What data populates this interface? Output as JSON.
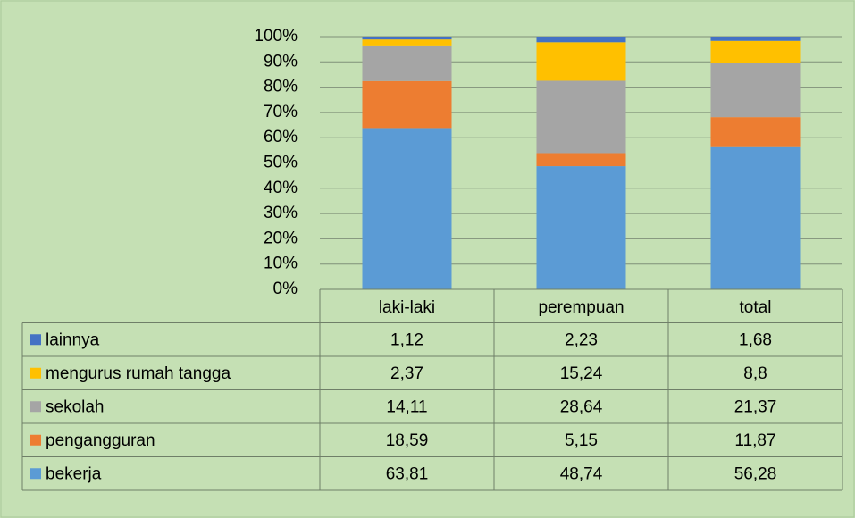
{
  "chart_data": {
    "type": "stacked_bar",
    "categories": [
      "laki-laki",
      "perempuan",
      "total"
    ],
    "series": [
      {
        "name": "lainnya",
        "color": "#4472c4",
        "values": [
          1.12,
          2.23,
          1.68
        ],
        "value_labels": [
          "1,12",
          "2,23",
          "1,68"
        ]
      },
      {
        "name": "mengurus rumah tangga",
        "color": "#ffc000",
        "values": [
          2.37,
          15.24,
          8.8
        ],
        "value_labels": [
          "2,37",
          "15,24",
          "8,8"
        ]
      },
      {
        "name": "sekolah",
        "color": "#a5a5a5",
        "values": [
          14.11,
          28.64,
          21.37
        ],
        "value_labels": [
          "14,11",
          "28,64",
          "21,37"
        ]
      },
      {
        "name": "pengangguran",
        "color": "#ed7d31",
        "values": [
          18.59,
          5.15,
          11.87
        ],
        "value_labels": [
          "18,59",
          "5,15",
          "11,87"
        ]
      },
      {
        "name": "bekerja",
        "color": "#5b9bd5",
        "values": [
          63.81,
          48.74,
          56.28
        ],
        "value_labels": [
          "63,81",
          "48,74",
          "56,28"
        ]
      }
    ],
    "ylim": [
      0,
      100
    ],
    "yticks": [
      {
        "value": 0,
        "label": "0%"
      },
      {
        "value": 10,
        "label": "10%"
      },
      {
        "value": 20,
        "label": "20%"
      },
      {
        "value": 30,
        "label": "30%"
      },
      {
        "value": 40,
        "label": "40%"
      },
      {
        "value": 50,
        "label": "50%"
      },
      {
        "value": 60,
        "label": "60%"
      },
      {
        "value": 70,
        "label": "70%"
      },
      {
        "value": 80,
        "label": "80%"
      },
      {
        "value": 90,
        "label": "90%"
      },
      {
        "value": 100,
        "label": "100%"
      }
    ],
    "grid": true,
    "data_table": true
  }
}
